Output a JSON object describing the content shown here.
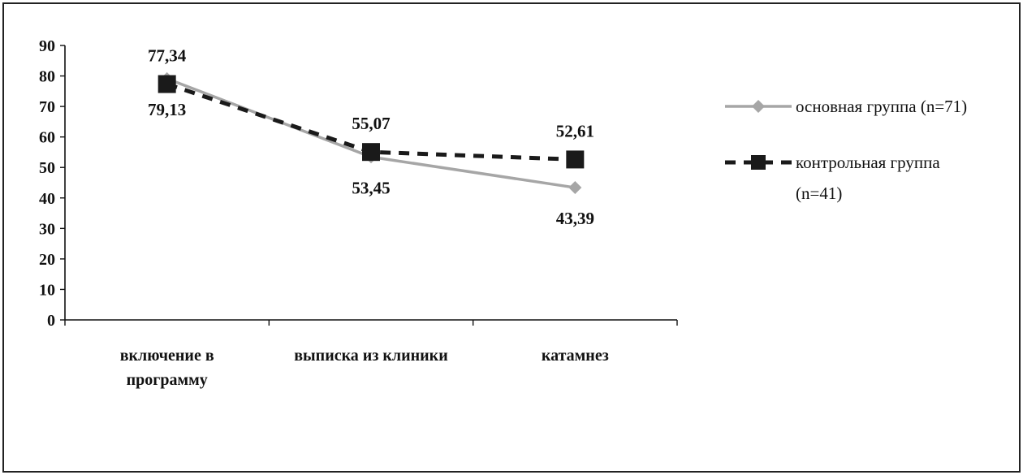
{
  "chart_data": {
    "type": "line",
    "title": "",
    "xlabel": "",
    "ylabel": "",
    "categories": [
      [
        "включение в",
        "программу"
      ],
      [
        "выписка из клиники"
      ],
      [
        "катамнез"
      ]
    ],
    "ylim": [
      0,
      90
    ],
    "yticks": [
      "0",
      "10",
      "20",
      "30",
      "40",
      "50",
      "60",
      "70",
      "80",
      "90"
    ],
    "grid": false,
    "legend_position": "right",
    "series": [
      {
        "name": "основная группа (n=71)",
        "values": [
          79.13,
          53.45,
          43.39
        ],
        "labels": [
          "79,13",
          "53,45",
          "43,39"
        ],
        "color": "#a6a6a6",
        "line_style": "solid",
        "marker": "diamond"
      },
      {
        "name": "контрольная группа (n=41)",
        "legend_lines": [
          "контрольная группа",
          "(n=41)"
        ],
        "values": [
          77.34,
          55.07,
          52.61
        ],
        "labels": [
          "77,34",
          "55,07",
          "52,61"
        ],
        "color": "#1a1a1a",
        "line_style": "dashed",
        "marker": "square"
      }
    ]
  }
}
